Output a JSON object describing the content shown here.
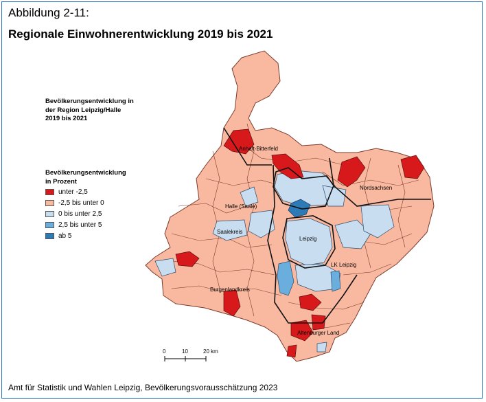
{
  "figure": {
    "number": "Abbildung 2-11:",
    "title": "Regionale Einwohnerentwicklung 2019 bis 2021",
    "source": "Amt für Statistik und Wahlen Leipzig, Bevölkerungsvorausschätzung 2023"
  },
  "map": {
    "title_lines": [
      "Bevölkerungsentwicklung in",
      "der Region Leipzig/Halle",
      "2019 bis 2021"
    ],
    "legend": {
      "title_lines": [
        "Bevölkerungsentwicklung",
        "in Prozent"
      ],
      "items": [
        {
          "label": "unter -2,5",
          "color": "#d7191c"
        },
        {
          "label": "-2,5 bis unter 0",
          "color": "#f9b9a0"
        },
        {
          "label": "0 bis unter 2,5",
          "color": "#c8ddf0"
        },
        {
          "label": "2,5 bis unter 5",
          "color": "#6aaede"
        },
        {
          "label": "ab 5",
          "color": "#2c7bb6"
        }
      ]
    },
    "region_labels": {
      "anhalt": "Anhalt-Bitterfeld",
      "nordsachsen": "Nordsachsen",
      "halle": "Halle (Saale)",
      "saalekreis": "Saalekreis",
      "leipzig": "Leipzig",
      "lk_leipzig": "LK Leipzig",
      "burgenland": "Burgenlandkreis",
      "altenburg": "Altenburger Land"
    },
    "scale": {
      "ticks": [
        "0",
        "10",
        "20 km"
      ]
    }
  }
}
